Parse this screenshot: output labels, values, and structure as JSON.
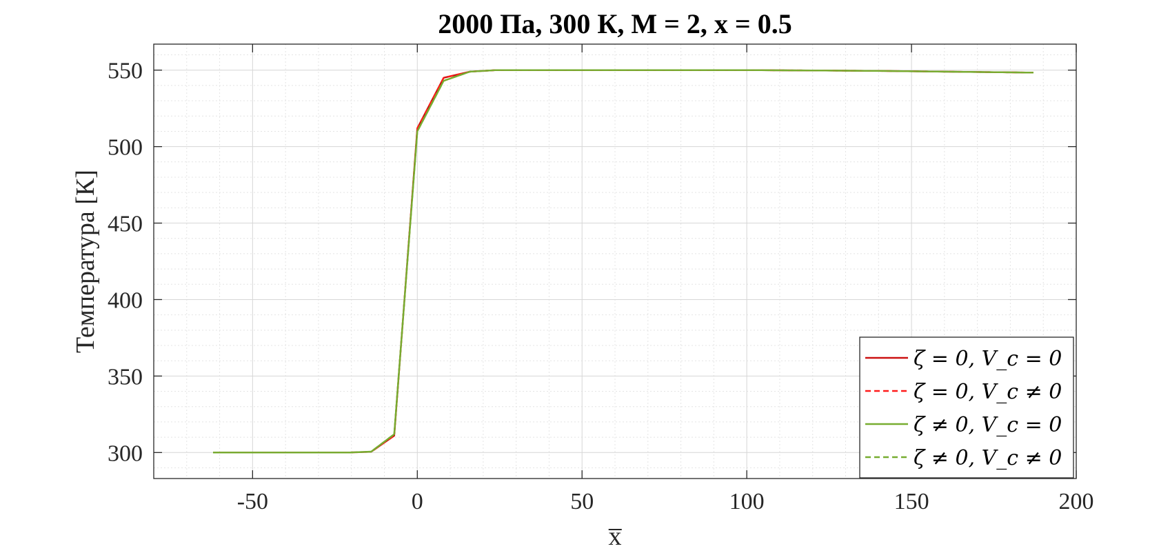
{
  "chart_data": {
    "type": "line",
    "title": "2000 Па, 300 К, M = 2, x = 0.5",
    "xlabel": "x̅",
    "ylabel": "Температура [К]",
    "xlim": [
      -80,
      200
    ],
    "ylim": [
      283,
      567
    ],
    "xticks": [
      -50,
      0,
      50,
      100,
      150,
      200
    ],
    "xtick_labels": [
      "-50",
      "0",
      "50",
      "100",
      "150",
      "200"
    ],
    "yticks": [
      300,
      350,
      400,
      450,
      500,
      550
    ],
    "ytick_labels": [
      "300",
      "350",
      "400",
      "450",
      "500",
      "550"
    ],
    "grid": true,
    "minor_grid": true,
    "legend_position": "bottom-right",
    "series": [
      {
        "name": "ζ = 0, V_c = 0",
        "color": "#cc1111",
        "style": "solid",
        "x": [
          -62,
          -40,
          -21,
          -14,
          -7,
          0,
          8,
          16,
          24,
          40,
          60,
          80,
          100,
          120,
          140,
          160,
          187
        ],
        "y": [
          300,
          300,
          300,
          300.5,
          311,
          512,
          545,
          549,
          550,
          550,
          550,
          550,
          550,
          549.8,
          549.5,
          549,
          548.4
        ]
      },
      {
        "name": "ζ = 0, V_c ≠ 0",
        "color": "#ff1a1a",
        "style": "dashed",
        "x": [
          -62,
          -40,
          -21,
          -14,
          -7,
          0,
          8,
          16,
          24,
          40,
          60,
          80,
          100,
          120,
          140,
          160,
          187
        ],
        "y": [
          300,
          300,
          300,
          300.5,
          311,
          512,
          545,
          549,
          550,
          550,
          550,
          550,
          550,
          549.8,
          549.5,
          549,
          548.4
        ]
      },
      {
        "name": "ζ ≠ 0, V_c = 0",
        "color": "#77ac30",
        "style": "solid",
        "x": [
          -62,
          -40,
          -21,
          -14,
          -7,
          0,
          8,
          16,
          24,
          40,
          60,
          80,
          100,
          120,
          140,
          160,
          187
        ],
        "y": [
          300,
          300,
          300,
          300.6,
          312,
          510,
          543,
          549,
          550,
          550,
          550,
          550,
          550,
          549.8,
          549.5,
          549,
          548.4
        ]
      },
      {
        "name": "ζ ≠ 0, V_c ≠ 0",
        "color": "#77ac30",
        "style": "dashed",
        "x": [
          -62,
          -40,
          -21,
          -14,
          -7,
          0,
          8,
          16,
          24,
          40,
          60,
          80,
          100,
          120,
          140,
          160,
          187
        ],
        "y": [
          300,
          300,
          300,
          300.6,
          312,
          510,
          543,
          549,
          550,
          550,
          550,
          550,
          550,
          549.8,
          549.5,
          549,
          548.4
        ]
      }
    ]
  }
}
